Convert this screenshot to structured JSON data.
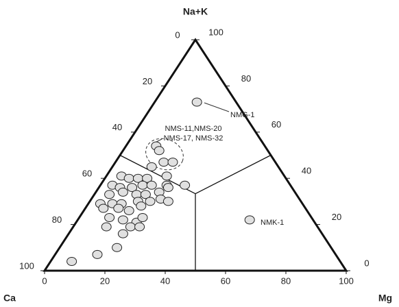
{
  "chart_data": {
    "type": "ternary",
    "axis_labels": {
      "top": "Na+K",
      "left": "Ca",
      "right": "Mg"
    },
    "mg_lim": [
      0,
      100
    ],
    "ca_lim": [
      0,
      100
    ],
    "nak_lim": [
      0,
      100
    ],
    "mg_ticks": [
      0,
      20,
      40,
      60,
      80,
      100
    ],
    "ca_ticks": [
      0,
      20,
      40,
      60,
      80,
      100
    ],
    "nak_ticks": [
      0,
      20,
      40,
      60,
      80,
      100
    ],
    "point_color": "#e0e0e0",
    "points": {
      "mg": [
        14,
        57,
        10,
        12,
        16,
        19,
        13,
        5,
        8,
        11,
        14,
        20,
        4,
        7,
        11,
        14,
        17,
        22,
        28,
        5,
        9,
        14,
        17,
        21,
        23,
        4,
        8,
        11,
        16,
        20,
        23,
        26,
        6,
        11,
        15,
        18,
        10,
        15,
        20,
        21,
        11,
        18,
        19,
        22,
        19,
        14,
        7
      ],
      "nak": [
        73,
        22,
        54,
        52,
        47,
        47,
        45,
        41,
        40,
        40,
        40,
        41,
        37,
        36,
        36,
        37,
        37,
        37,
        37,
        33,
        34,
        33,
        33,
        34,
        36,
        29,
        29,
        29,
        30,
        30,
        31,
        30,
        27,
        27,
        26,
        28,
        23,
        22,
        21,
        23,
        19,
        16,
        19,
        19,
        10,
        7,
        4
      ]
    },
    "annotations": [
      "NMG-1",
      "NMK-1",
      "NMS-11,NMS-20",
      "NMS-17, NMS-32"
    ]
  }
}
